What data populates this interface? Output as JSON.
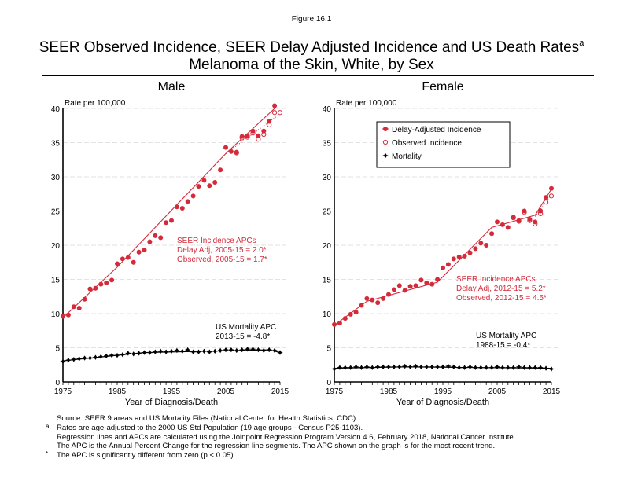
{
  "figure_label": "Figure 16.1",
  "title_line1": "SEER Observed Incidence, SEER Delay Adjusted Incidence and US Death Rates",
  "title_superscript": "a",
  "title_line2": "Melanoma of the Skin, White, by Sex",
  "colors": {
    "incidence": "#d42a3a",
    "mortality": "#000000",
    "grid": "#d9d9d9"
  },
  "chart_data": [
    {
      "type": "line",
      "panel": "Male",
      "ylabel": "Rate per 100,000",
      "xlabel": "Year of Diagnosis/Death",
      "xlim": [
        1975,
        2015
      ],
      "ylim": [
        0,
        40
      ],
      "x_ticks": [
        1975,
        1985,
        1995,
        2005,
        2015
      ],
      "y_ticks": [
        0,
        5,
        10,
        15,
        20,
        25,
        30,
        35,
        40
      ],
      "grid": true,
      "x": [
        1975,
        1976,
        1977,
        1978,
        1979,
        1980,
        1981,
        1982,
        1983,
        1984,
        1985,
        1986,
        1987,
        1988,
        1989,
        1990,
        1991,
        1992,
        1993,
        1994,
        1995,
        1996,
        1997,
        1998,
        1999,
        2000,
        2001,
        2002,
        2003,
        2004,
        2005,
        2006,
        2007,
        2008,
        2009,
        2010,
        2011,
        2012,
        2013,
        2014,
        2015
      ],
      "series": [
        {
          "name": "Delay-Adjusted Incidence",
          "marker": "filled-circle",
          "values": [
            9.6,
            9.8,
            11.0,
            10.8,
            12.1,
            13.6,
            13.7,
            14.3,
            14.5,
            14.9,
            17.3,
            18.0,
            18.2,
            17.5,
            19.0,
            19.3,
            20.5,
            21.4,
            21.1,
            23.3,
            23.6,
            25.6,
            25.4,
            26.4,
            27.2,
            28.6,
            29.5,
            28.7,
            29.2,
            31.0,
            34.3,
            33.7,
            33.6,
            35.9,
            36.0,
            36.7,
            36.0,
            36.7,
            38.1,
            40.4,
            null
          ]
        },
        {
          "name": "Observed Incidence",
          "marker": "open-circle",
          "values": [
            9.6,
            9.8,
            11.0,
            10.8,
            12.1,
            13.6,
            13.7,
            14.3,
            14.5,
            14.9,
            17.3,
            18.0,
            18.2,
            17.5,
            19.0,
            19.3,
            20.5,
            21.4,
            21.1,
            23.3,
            23.6,
            25.6,
            25.4,
            26.4,
            27.2,
            28.6,
            29.5,
            28.7,
            29.2,
            31.0,
            34.3,
            33.7,
            33.5,
            35.7,
            35.8,
            36.4,
            35.5,
            36.2,
            37.6,
            39.4,
            39.4
          ]
        },
        {
          "name": "Mortality",
          "marker": "diamond-cross",
          "values": [
            3.0,
            3.2,
            3.3,
            3.4,
            3.5,
            3.5,
            3.6,
            3.7,
            3.8,
            3.9,
            3.9,
            4.0,
            4.2,
            4.1,
            4.2,
            4.3,
            4.3,
            4.4,
            4.5,
            4.4,
            4.5,
            4.6,
            4.5,
            4.7,
            4.4,
            4.4,
            4.5,
            4.4,
            4.5,
            4.6,
            4.7,
            4.7,
            4.6,
            4.7,
            4.8,
            4.8,
            4.7,
            4.6,
            4.7,
            4.6,
            4.3
          ]
        }
      ],
      "regression": {
        "delay_adj": {
          "x": [
            1975,
            1985,
            2005,
            2014
          ],
          "y": [
            9.4,
            16.8,
            33.4,
            40.0
          ]
        },
        "observed": {
          "x": [
            2005,
            2015
          ],
          "y": [
            33.4,
            39.2
          ]
        },
        "mortality": {
          "x": [
            1975,
            1990,
            2013,
            2015
          ],
          "y": [
            3.1,
            4.3,
            4.7,
            4.3
          ]
        }
      },
      "annotations": {
        "incidence": [
          "SEER Incidence APCs",
          "Delay Adj, 2005-15 = 2.0*",
          "Observed, 2005-15 = 1.7*"
        ],
        "mortality": [
          "US Mortality APC",
          "2013-15 = -4.8*"
        ]
      }
    },
    {
      "type": "line",
      "panel": "Female",
      "ylabel": "Rate per 100,000",
      "xlabel": "Year of Diagnosis/Death",
      "xlim": [
        1975,
        2015
      ],
      "ylim": [
        0,
        40
      ],
      "x_ticks": [
        1975,
        1985,
        1995,
        2005,
        2015
      ],
      "y_ticks": [
        0,
        5,
        10,
        15,
        20,
        25,
        30,
        35,
        40
      ],
      "grid": true,
      "legend_position": "upper-center",
      "x": [
        1975,
        1976,
        1977,
        1978,
        1979,
        1980,
        1981,
        1982,
        1983,
        1984,
        1985,
        1986,
        1987,
        1988,
        1989,
        1990,
        1991,
        1992,
        1993,
        1994,
        1995,
        1996,
        1997,
        1998,
        1999,
        2000,
        2001,
        2002,
        2003,
        2004,
        2005,
        2006,
        2007,
        2008,
        2009,
        2010,
        2011,
        2012,
        2013,
        2014,
        2015
      ],
      "series": [
        {
          "name": "Delay-Adjusted Incidence",
          "marker": "filled-circle",
          "values": [
            8.4,
            8.6,
            9.3,
            9.9,
            10.2,
            11.2,
            12.2,
            12.0,
            11.6,
            12.2,
            12.8,
            13.5,
            14.1,
            13.4,
            14.0,
            14.1,
            14.9,
            14.5,
            14.3,
            15.0,
            16.7,
            17.2,
            18.0,
            18.3,
            18.4,
            18.9,
            19.5,
            20.3,
            20.0,
            21.7,
            23.4,
            23.0,
            22.6,
            24.1,
            23.6,
            25.0,
            23.8,
            23.4,
            25.0,
            27.0,
            28.3
          ]
        },
        {
          "name": "Observed Incidence",
          "marker": "open-circle",
          "values": [
            8.4,
            8.6,
            9.3,
            9.9,
            10.2,
            11.2,
            12.2,
            12.0,
            11.6,
            12.2,
            12.8,
            13.5,
            14.1,
            13.4,
            14.0,
            14.1,
            14.9,
            14.5,
            14.3,
            15.0,
            16.7,
            17.2,
            18.0,
            18.3,
            18.4,
            18.9,
            19.5,
            20.3,
            20.0,
            21.7,
            23.4,
            23.0,
            22.6,
            24.0,
            23.5,
            24.8,
            23.6,
            23.1,
            24.6,
            26.3,
            27.2
          ]
        },
        {
          "name": "Mortality",
          "marker": "diamond-cross",
          "values": [
            1.9,
            2.1,
            2.1,
            2.1,
            2.2,
            2.1,
            2.2,
            2.1,
            2.2,
            2.2,
            2.2,
            2.2,
            2.2,
            2.3,
            2.2,
            2.3,
            2.2,
            2.2,
            2.2,
            2.2,
            2.2,
            2.3,
            2.2,
            2.1,
            2.1,
            2.2,
            2.1,
            2.1,
            2.1,
            2.1,
            2.2,
            2.1,
            2.1,
            2.1,
            2.2,
            2.1,
            2.1,
            2.1,
            2.1,
            2.0,
            1.9
          ]
        }
      ],
      "regression": {
        "delay_adj": {
          "x": [
            1975,
            1981,
            1994,
            2004,
            2012,
            2015
          ],
          "y": [
            8.3,
            11.8,
            14.6,
            22.6,
            24.4,
            28.2
          ]
        },
        "observed": {
          "x": [
            2012,
            2015
          ],
          "y": [
            24.2,
            27.4
          ]
        },
        "mortality": {
          "x": [
            1975,
            1988,
            2015
          ],
          "y": [
            2.0,
            2.2,
            2.0
          ]
        }
      },
      "annotations": {
        "incidence": [
          "SEER Incidence APCs",
          "Delay Adj, 2012-15 = 5.2*",
          "Observed, 2012-15 = 4.5*"
        ],
        "mortality": [
          "US Mortality APC",
          "1988-15 = -0.4*"
        ]
      }
    }
  ],
  "legend": [
    "Delay-Adjusted Incidence",
    "Observed Incidence",
    "Mortality"
  ],
  "footnotes": [
    {
      "mark": "",
      "text": "Source: SEER 9 areas and US Mortality Files (National Center for Health Statistics, CDC)."
    },
    {
      "mark": "a",
      "text": "Rates are age-adjusted to the 2000 US Std Population (19 age groups - Census P25-1103)."
    },
    {
      "mark": "",
      "text": "Regression lines and APCs are calculated using the Joinpoint Regression Program Version 4.6, February 2018, National Cancer Institute."
    },
    {
      "mark": "",
      "text": "The APC is the Annual Percent Change for the regression line segments. The APC shown on the graph is for the most recent trend."
    },
    {
      "mark": "*",
      "text": "The APC is significantly different from zero (p < 0.05)."
    }
  ]
}
